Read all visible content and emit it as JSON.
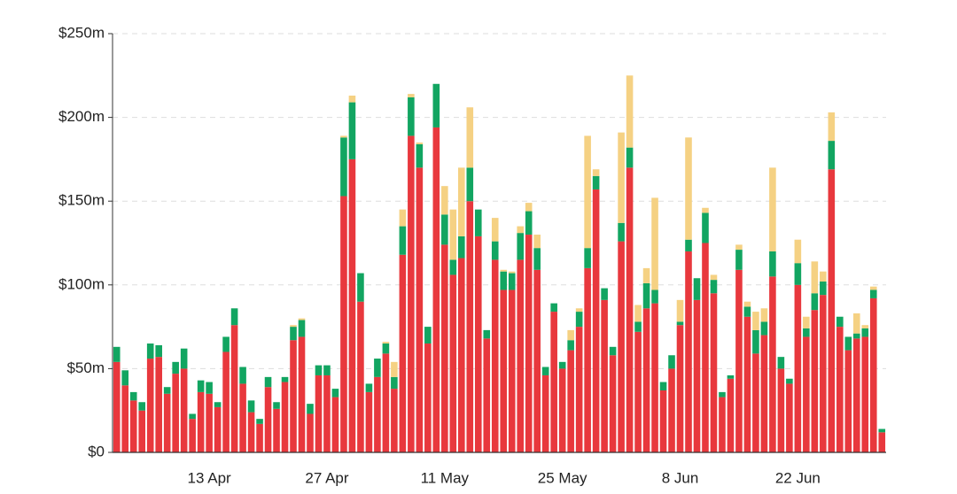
{
  "chart_data": {
    "type": "stacked_bar",
    "categories": [
      null,
      null,
      null,
      null,
      null,
      null,
      null,
      null,
      null,
      null,
      null,
      "13 Apr",
      null,
      null,
      null,
      null,
      null,
      null,
      null,
      null,
      null,
      null,
      null,
      null,
      null,
      "27 Apr",
      null,
      null,
      null,
      null,
      null,
      null,
      null,
      null,
      null,
      null,
      null,
      null,
      null,
      "11 May",
      null,
      null,
      null,
      null,
      null,
      null,
      null,
      null,
      null,
      null,
      null,
      null,
      null,
      "25 May",
      null,
      null,
      null,
      null,
      null,
      null,
      null,
      null,
      null,
      null,
      null,
      null,
      null,
      "8 Jun",
      null,
      null,
      null,
      null,
      null,
      null,
      null,
      null,
      null,
      null,
      null,
      null,
      null,
      "22 Jun",
      null,
      null,
      null,
      null,
      null,
      null,
      null,
      null,
      null,
      null
    ],
    "series": [
      {
        "color": "#e8383d",
        "values": [
          54,
          40,
          31,
          25,
          56,
          57,
          35,
          47,
          50,
          20,
          36,
          35,
          27,
          60,
          76,
          41,
          24,
          17,
          39,
          26,
          42,
          67,
          69,
          23,
          46,
          46,
          33,
          153,
          175,
          90,
          36,
          45,
          59,
          38,
          118,
          189,
          170,
          65,
          194,
          124,
          106,
          116,
          150,
          129,
          68,
          115,
          97,
          97,
          115,
          130,
          109,
          46,
          84,
          50,
          61,
          75,
          110,
          157,
          91,
          58,
          126,
          170,
          72,
          86,
          89,
          37,
          50,
          76,
          120,
          91,
          125,
          95,
          33,
          44,
          109,
          81,
          59,
          70,
          105,
          50,
          41,
          100,
          69,
          85,
          94,
          169,
          75,
          61,
          68,
          69,
          92,
          12
        ]
      },
      {
        "color": "#12a561",
        "values": [
          9,
          9,
          5,
          5,
          9,
          7,
          4,
          7,
          12,
          3,
          7,
          7,
          3,
          9,
          10,
          10,
          7,
          3,
          6,
          4,
          3,
          8,
          10,
          6,
          6,
          6,
          5,
          35,
          34,
          17,
          5,
          11,
          6,
          7,
          17,
          23,
          14,
          10,
          26,
          18,
          9,
          13,
          20,
          16,
          5,
          11,
          11,
          10,
          16,
          14,
          13,
          5,
          5,
          4,
          6,
          9,
          12,
          8,
          7,
          5,
          11,
          12,
          6,
          15,
          8,
          5,
          8,
          2,
          7,
          13,
          18,
          8,
          3,
          2,
          12,
          6,
          14,
          8,
          15,
          7,
          3,
          13,
          5,
          10,
          8,
          17,
          6,
          8,
          3,
          5,
          5,
          2
        ]
      },
      {
        "color": "#f5d183",
        "values": [
          0,
          0,
          0,
          0,
          0,
          0,
          0,
          0,
          0,
          0,
          0,
          0,
          0,
          0,
          0,
          0,
          0,
          0,
          0,
          0,
          0,
          1,
          1,
          0,
          0,
          0,
          0,
          1,
          4,
          0,
          0,
          0,
          1,
          9,
          10,
          2,
          1,
          0,
          0,
          17,
          30,
          41,
          36,
          0,
          0,
          14,
          1,
          1,
          4,
          5,
          8,
          0,
          0,
          0,
          6,
          2,
          67,
          4,
          0,
          0,
          54,
          43,
          10,
          9,
          55,
          0,
          0,
          13,
          61,
          0,
          3,
          3,
          0,
          0,
          3,
          3,
          11,
          8,
          50,
          0,
          0,
          14,
          7,
          19,
          6,
          17,
          0,
          0,
          12,
          2,
          2,
          0
        ]
      }
    ],
    "ylim": [
      0,
      250
    ],
    "yticks": [
      {
        "value": 0,
        "label": "$0"
      },
      {
        "value": 50,
        "label": "$50m"
      },
      {
        "value": 100,
        "label": "$100m"
      },
      {
        "value": 150,
        "label": "$150m"
      },
      {
        "value": 200,
        "label": "$200m"
      },
      {
        "value": 250,
        "label": "$250m"
      }
    ],
    "grid": true
  }
}
